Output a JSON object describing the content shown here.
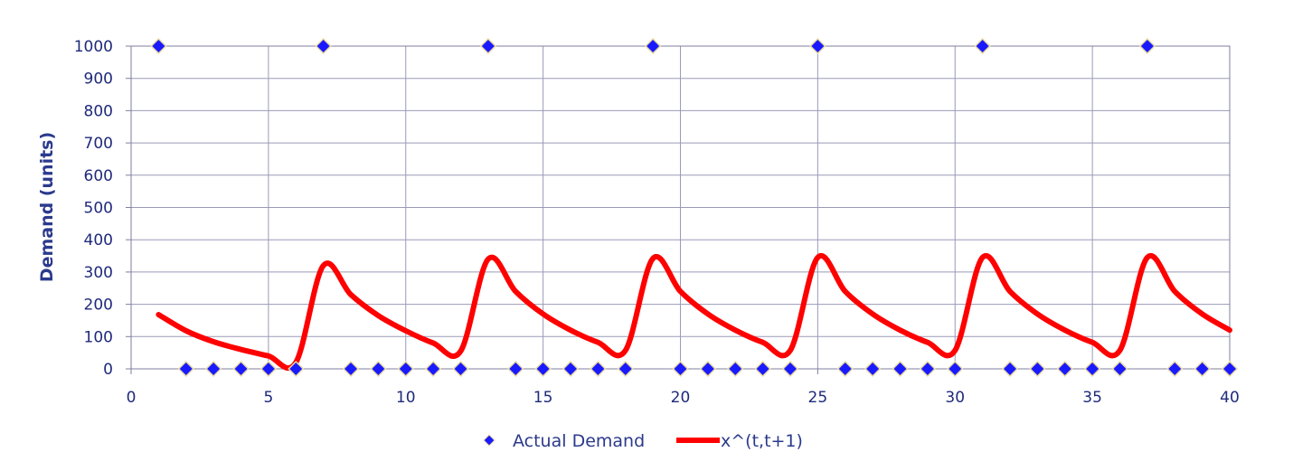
{
  "chart_data": {
    "type": "scatter",
    "xlabel": "",
    "ylabel": "Demand (units)",
    "xlim": [
      0,
      40
    ],
    "ylim": [
      0,
      1000
    ],
    "x_ticks": [
      0,
      5,
      10,
      15,
      20,
      25,
      30,
      35,
      40
    ],
    "y_ticks": [
      0,
      100,
      200,
      300,
      400,
      500,
      600,
      700,
      800,
      900,
      1000
    ],
    "grid": true,
    "legend_position": "bottom",
    "series": [
      {
        "name": "Actual Demand",
        "type": "scatter",
        "marker": "diamond",
        "color": "#1a1aff",
        "x": [
          1,
          2,
          3,
          4,
          5,
          6,
          7,
          8,
          9,
          10,
          11,
          12,
          13,
          14,
          15,
          16,
          17,
          18,
          19,
          20,
          21,
          22,
          23,
          24,
          25,
          26,
          27,
          28,
          29,
          30,
          31,
          32,
          33,
          34,
          35,
          36,
          37,
          38,
          39,
          40
        ],
        "y": [
          1000,
          0,
          0,
          0,
          0,
          0,
          1000,
          0,
          0,
          0,
          0,
          0,
          1000,
          0,
          0,
          0,
          0,
          0,
          1000,
          0,
          0,
          0,
          0,
          0,
          1000,
          0,
          0,
          0,
          0,
          0,
          1000,
          0,
          0,
          0,
          0,
          0,
          1000,
          0,
          0,
          0
        ]
      },
      {
        "name": "x^(t,t+1)",
        "type": "line",
        "color": "#ff0000",
        "x": [
          1,
          2,
          3,
          4,
          5,
          6,
          7,
          8,
          9,
          10,
          11,
          12,
          13,
          14,
          15,
          16,
          17,
          18,
          19,
          20,
          21,
          22,
          23,
          24,
          25,
          26,
          27,
          28,
          29,
          30,
          31,
          32,
          33,
          34,
          35,
          36,
          37,
          38,
          39,
          40
        ],
        "y": [
          168,
          118,
          84,
          60,
          40,
          20,
          320,
          230,
          165,
          118,
          80,
          55,
          340,
          240,
          170,
          120,
          82,
          57,
          342,
          240,
          170,
          120,
          82,
          57,
          345,
          240,
          170,
          120,
          82,
          57,
          345,
          240,
          170,
          120,
          82,
          57,
          345,
          240,
          170,
          120
        ]
      }
    ]
  }
}
